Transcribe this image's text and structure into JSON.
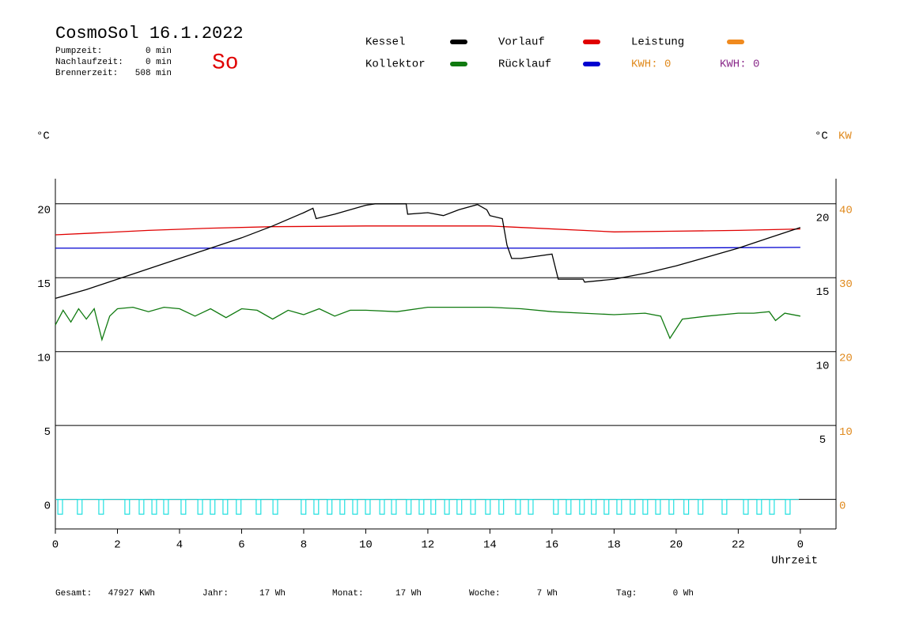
{
  "header": {
    "title": "CosmoSol 16.1.2022",
    "day": "So",
    "stats": [
      {
        "label": "Pumpzeit:",
        "value": "0 min"
      },
      {
        "label": "Nachlaufzeit:",
        "value": "0 min"
      },
      {
        "label": "Brennerzeit:",
        "value": "508 min"
      }
    ],
    "kwh": [
      {
        "text": "KWH: 0",
        "color": "#e08a1e"
      },
      {
        "text": "KWH: 0",
        "color": "#8a2a8a"
      }
    ]
  },
  "chart_data": {
    "type": "line",
    "y_label": "°C",
    "y2_label_c": "°C",
    "y2_label": "KW",
    "x_label": "Uhrzeit",
    "xlim": [
      0,
      25.15
    ],
    "xticks": [
      0,
      2,
      4,
      6,
      8,
      10,
      12,
      14,
      16,
      18,
      20,
      22,
      {
        "value": 24,
        "label": "0"
      }
    ],
    "ylim": [
      -2,
      21.7
    ],
    "yticks": [
      0,
      5,
      10,
      15,
      20
    ],
    "y_right_ticks": [
      5,
      10,
      15,
      20
    ],
    "y2lim": [
      -4,
      43.4
    ],
    "y2ticks": [
      0,
      10,
      20,
      30,
      40
    ],
    "grid": true,
    "series": [
      {
        "name": "Kessel",
        "color": "#000000",
        "x": [
          0,
          1,
          2,
          3,
          4,
          5,
          6,
          7,
          8,
          8.3,
          8.4,
          9,
          10,
          10.3,
          11.3,
          11.35,
          12,
          12.5,
          13,
          13.6,
          13.9,
          14.0,
          14.4,
          14.55,
          14.7,
          15.0,
          16.0,
          16.2,
          17.0,
          17.05,
          18,
          19,
          20,
          21,
          22,
          23,
          24
        ],
        "values": [
          13.6,
          14.2,
          14.9,
          15.6,
          16.3,
          17.0,
          17.7,
          18.5,
          19.4,
          19.7,
          19.0,
          19.3,
          19.9,
          20,
          20,
          19.3,
          19.4,
          19.2,
          19.6,
          19.95,
          19.6,
          19.2,
          19.0,
          17.2,
          16.3,
          16.3,
          16.6,
          14.9,
          14.9,
          14.7,
          14.9,
          15.3,
          15.8,
          16.4,
          17.0,
          17.7,
          18.4
        ]
      },
      {
        "name": "Vorlauf",
        "color": "#e00000",
        "x": [
          0,
          1,
          3,
          5,
          7,
          10,
          14,
          15,
          17,
          18,
          20,
          22,
          24
        ],
        "values": [
          17.9,
          18.0,
          18.2,
          18.35,
          18.45,
          18.5,
          18.5,
          18.4,
          18.2,
          18.1,
          18.15,
          18.2,
          18.3
        ]
      },
      {
        "name": "Leistung",
        "color": "#f08a1e",
        "axis": "y2",
        "x": [],
        "values": []
      },
      {
        "name": "Kollektor",
        "color": "#107a10",
        "x": [
          0,
          0.25,
          0.5,
          0.75,
          1,
          1.25,
          1.5,
          1.75,
          2,
          2.5,
          3,
          3.5,
          4,
          4.5,
          5,
          5.5,
          6,
          6.5,
          7,
          7.5,
          8,
          8.5,
          9,
          9.5,
          10,
          11,
          12,
          13,
          14,
          15,
          16,
          17,
          18,
          19,
          19.5,
          19.8,
          20.2,
          21,
          22,
          22.5,
          23,
          23.2,
          23.5,
          24
        ],
        "values": [
          11.8,
          12.8,
          12.0,
          12.9,
          12.2,
          12.9,
          10.8,
          12.4,
          12.9,
          13.0,
          12.7,
          13.0,
          12.9,
          12.4,
          12.9,
          12.3,
          12.9,
          12.8,
          12.2,
          12.8,
          12.5,
          12.9,
          12.4,
          12.8,
          12.8,
          12.7,
          13.0,
          13.0,
          13.0,
          12.9,
          12.7,
          12.6,
          12.5,
          12.6,
          12.4,
          10.9,
          12.2,
          12.4,
          12.6,
          12.6,
          12.7,
          12.1,
          12.6,
          12.4
        ]
      },
      {
        "name": "Rücklauf",
        "color": "#0000d0",
        "x": [
          0,
          6,
          12,
          18,
          24
        ],
        "values": [
          17.0,
          17.0,
          17.0,
          17.0,
          17.05
        ]
      }
    ],
    "pulses": {
      "color": "#20e0e0",
      "width": 0.15,
      "top": 0,
      "bottom": -1,
      "x": [
        0.08,
        0.71,
        1.4,
        2.24,
        2.7,
        3.11,
        3.49,
        4.05,
        4.59,
        4.99,
        5.4,
        5.83,
        6.47,
        7.01,
        7.92,
        8.33,
        8.76,
        9.17,
        9.58,
        9.99,
        10.45,
        10.83,
        11.31,
        11.72,
        12.1,
        12.54,
        12.94,
        13.38,
        13.86,
        14.29,
        14.83,
        15.24,
        16.05,
        16.46,
        16.89,
        17.27,
        17.68,
        18.09,
        18.52,
        18.93,
        19.34,
        19.77,
        20.25,
        20.71,
        21.48,
        22.17,
        22.6,
        23.01,
        23.52
      ]
    }
  },
  "footer": [
    {
      "label": "Gesamt:",
      "value": "47927 KWh"
    },
    {
      "label": "Jahr:",
      "value": "17 Wh"
    },
    {
      "label": "Monat:",
      "value": "17 Wh"
    },
    {
      "label": "Woche:",
      "value": "7 Wh"
    },
    {
      "label": "Tag:",
      "value": "0 Wh"
    }
  ]
}
